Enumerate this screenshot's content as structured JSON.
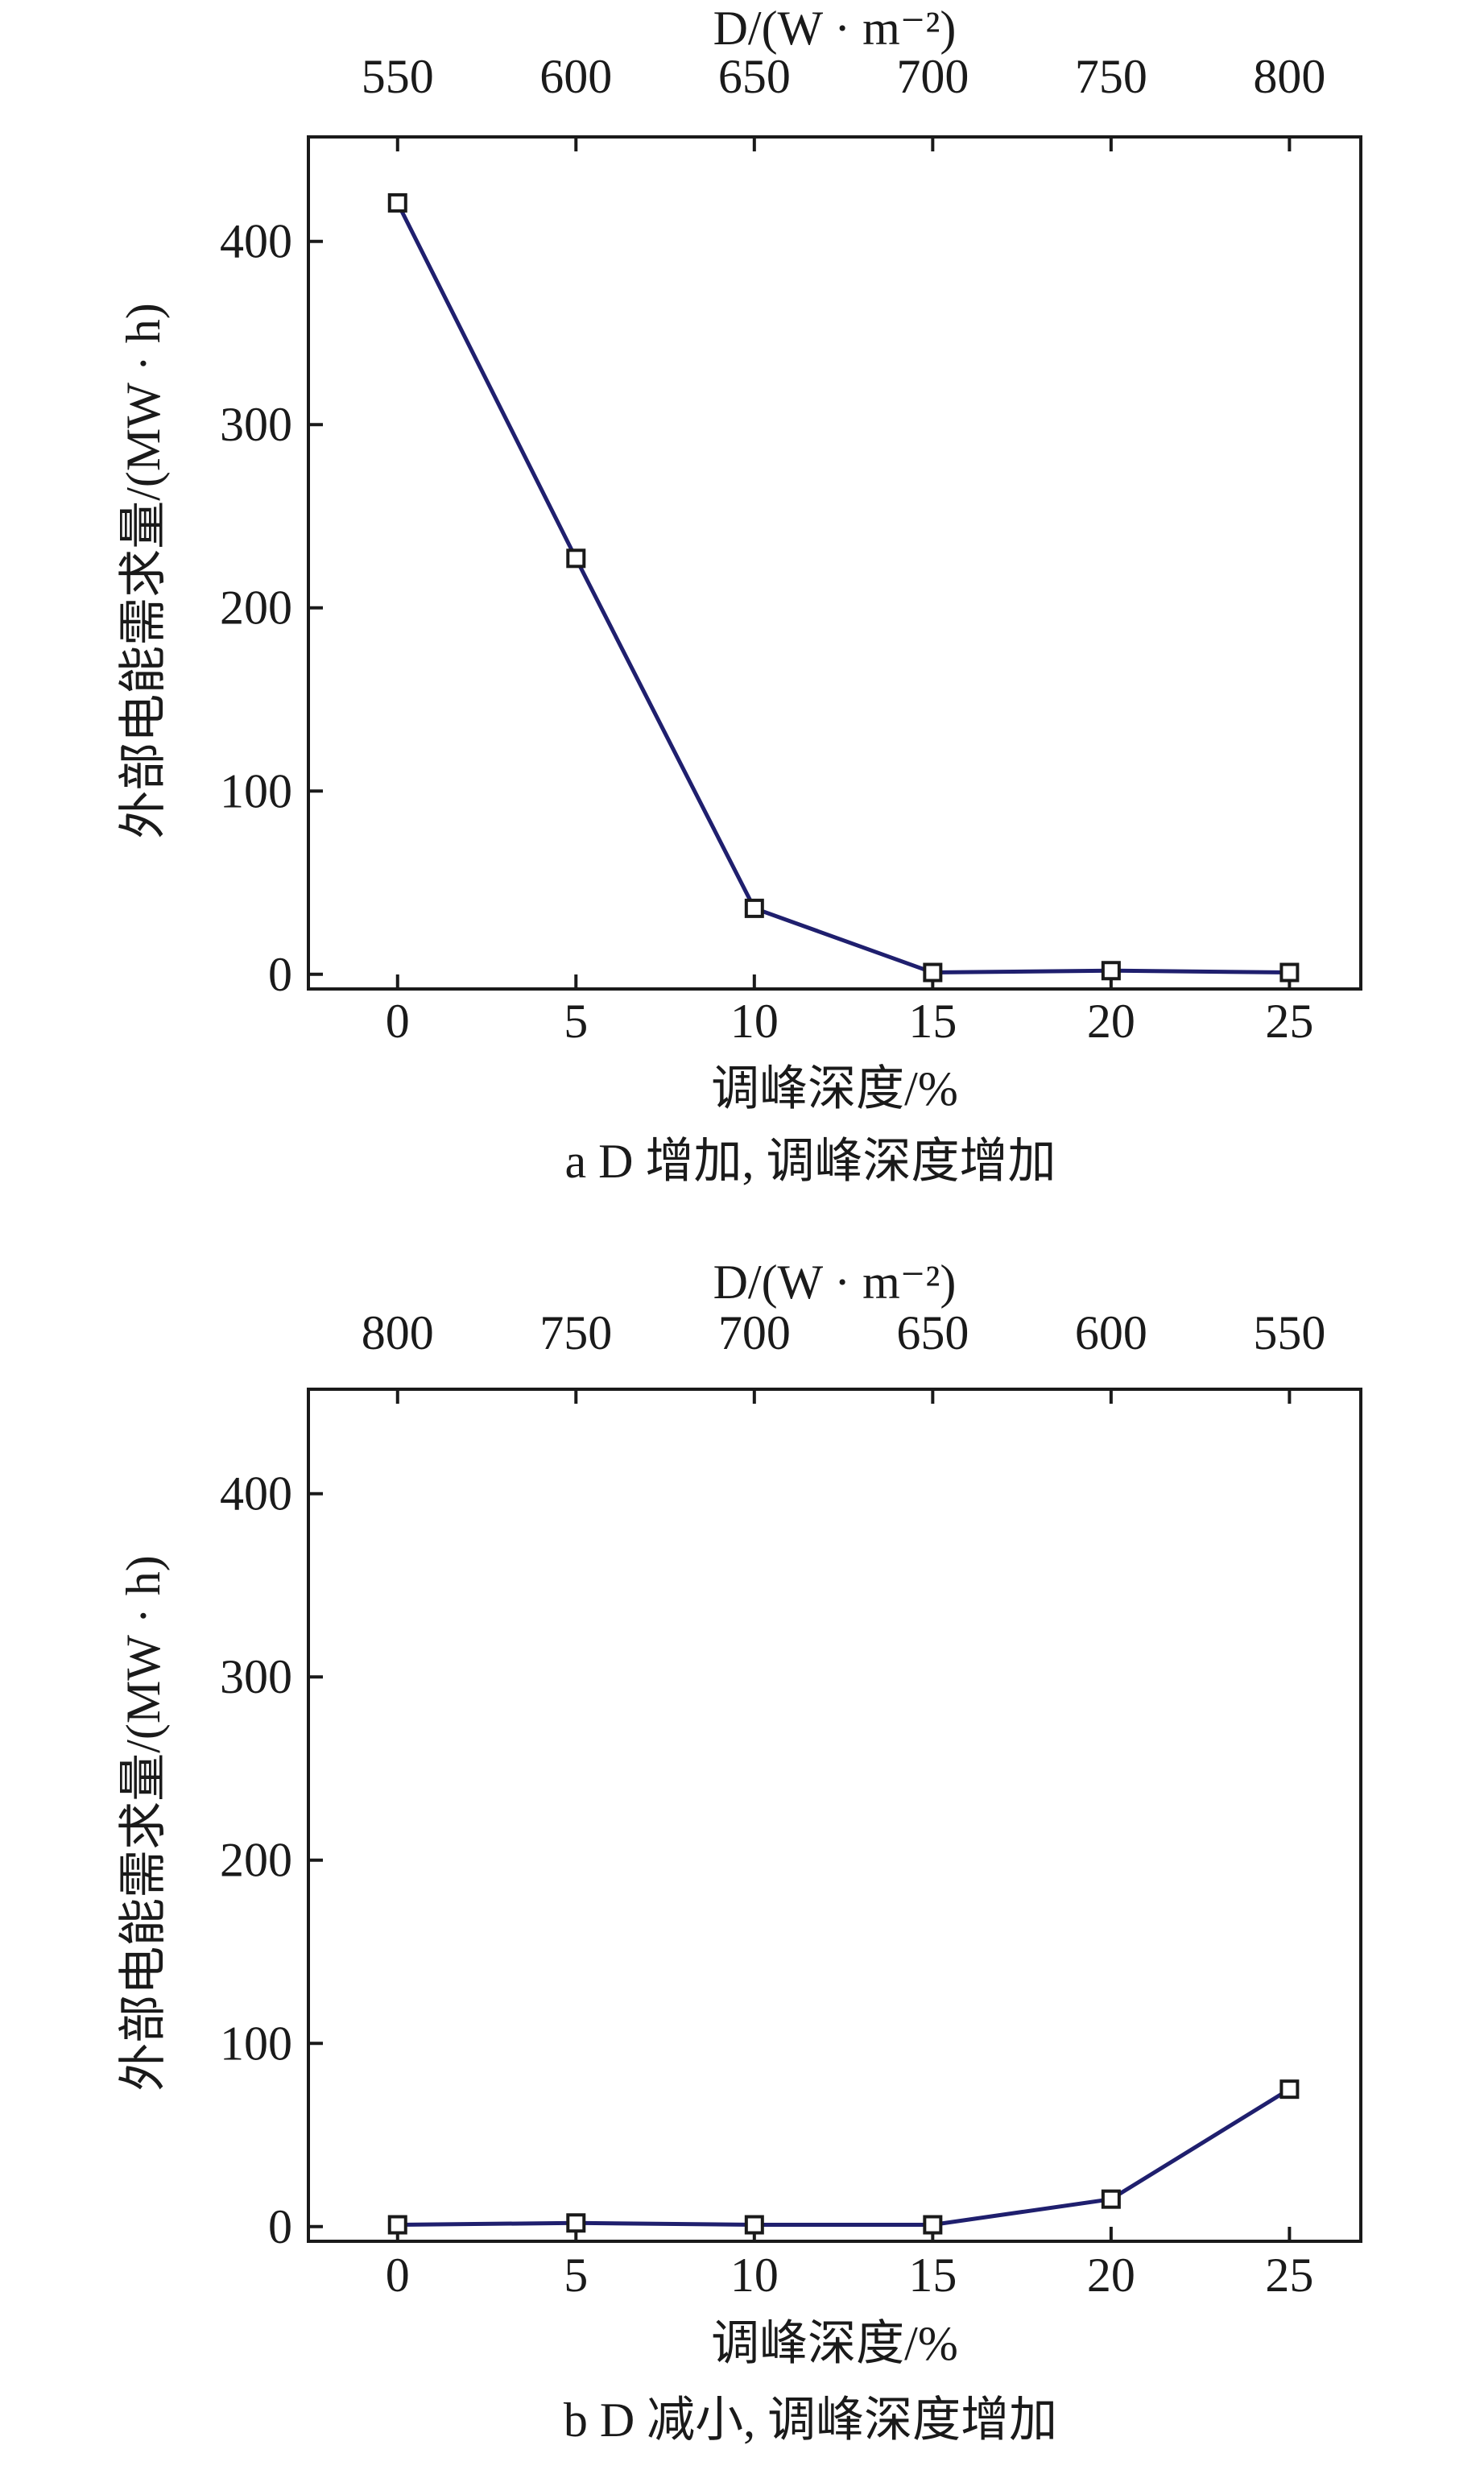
{
  "chart_data": [
    {
      "type": "line",
      "caption": "a  D 增加, 调峰深度增加",
      "xlabel": "调峰深度/%",
      "ylabel": "外部电能需求量/(MW · h)",
      "top_xlabel": "D/(W · m⁻²)",
      "x": [
        0,
        5,
        10,
        15,
        20,
        25
      ],
      "top_tick_labels": [
        "550",
        "600",
        "650",
        "700",
        "750",
        "800"
      ],
      "y_ticks": [
        0,
        100,
        200,
        300,
        400
      ],
      "xlim": [
        -2.5,
        27
      ],
      "ylim": [
        -8,
        457
      ],
      "series": [
        {
          "values": [
            421,
            227,
            36,
            1,
            2,
            1
          ],
          "color": "#1f1f6e",
          "marker": "open-square"
        }
      ]
    },
    {
      "type": "line",
      "caption": "b  D 减小, 调峰深度增加",
      "xlabel": "调峰深度/%",
      "ylabel": "外部电能需求量/(MW · h)",
      "top_xlabel": "D/(W · m⁻²)",
      "x": [
        0,
        5,
        10,
        15,
        20,
        25
      ],
      "top_tick_labels": [
        "800",
        "750",
        "700",
        "650",
        "600",
        "550"
      ],
      "y_ticks": [
        0,
        100,
        200,
        300,
        400
      ],
      "xlim": [
        -2.5,
        27
      ],
      "ylim": [
        -8,
        457
      ],
      "series": [
        {
          "values": [
            1,
            2,
            1,
            1,
            15,
            75
          ],
          "color": "#1f1f6e",
          "marker": "open-square"
        }
      ]
    }
  ]
}
